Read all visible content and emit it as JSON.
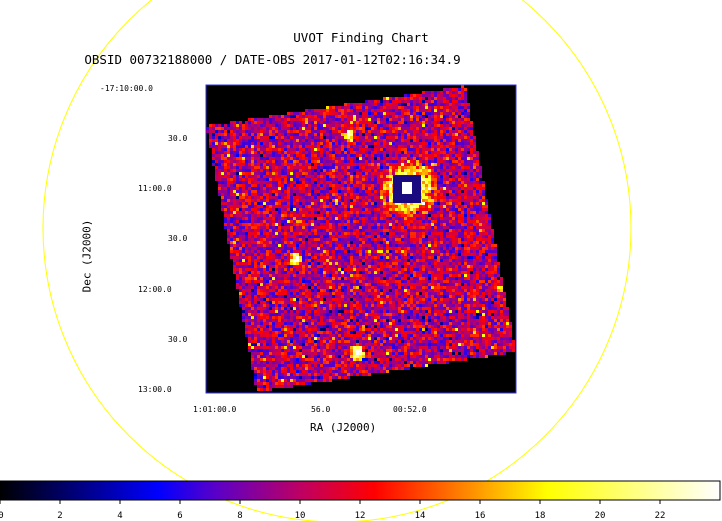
{
  "chart_data": {
    "type": "heatmap",
    "title": "UVOT Finding Chart",
    "subtitle": "OBSID 00732188000 / DATE-OBS 2017-01-12T02:16:34.9",
    "xlabel": "RA (J2000)",
    "ylabel": "Dec (J2000)",
    "x_ticks": [
      "1:01:00.0",
      "56.0",
      "00:52.0"
    ],
    "y_ticks": [
      "-17:10:00.0",
      "30.0",
      "11:00.0",
      "30.0",
      "12:00.0",
      "30.0",
      "13:00.0"
    ],
    "colorbar": {
      "ticks": [
        0,
        2,
        4,
        6,
        8,
        10,
        12,
        14,
        16,
        18,
        20,
        22
      ],
      "range": [
        0,
        24
      ],
      "colors": [
        "#000000",
        "#0000ff",
        "#ff0000",
        "#ffff00",
        "#ffffff"
      ]
    },
    "circle_color": "#ffff00",
    "frame_color": "#3333dd"
  }
}
